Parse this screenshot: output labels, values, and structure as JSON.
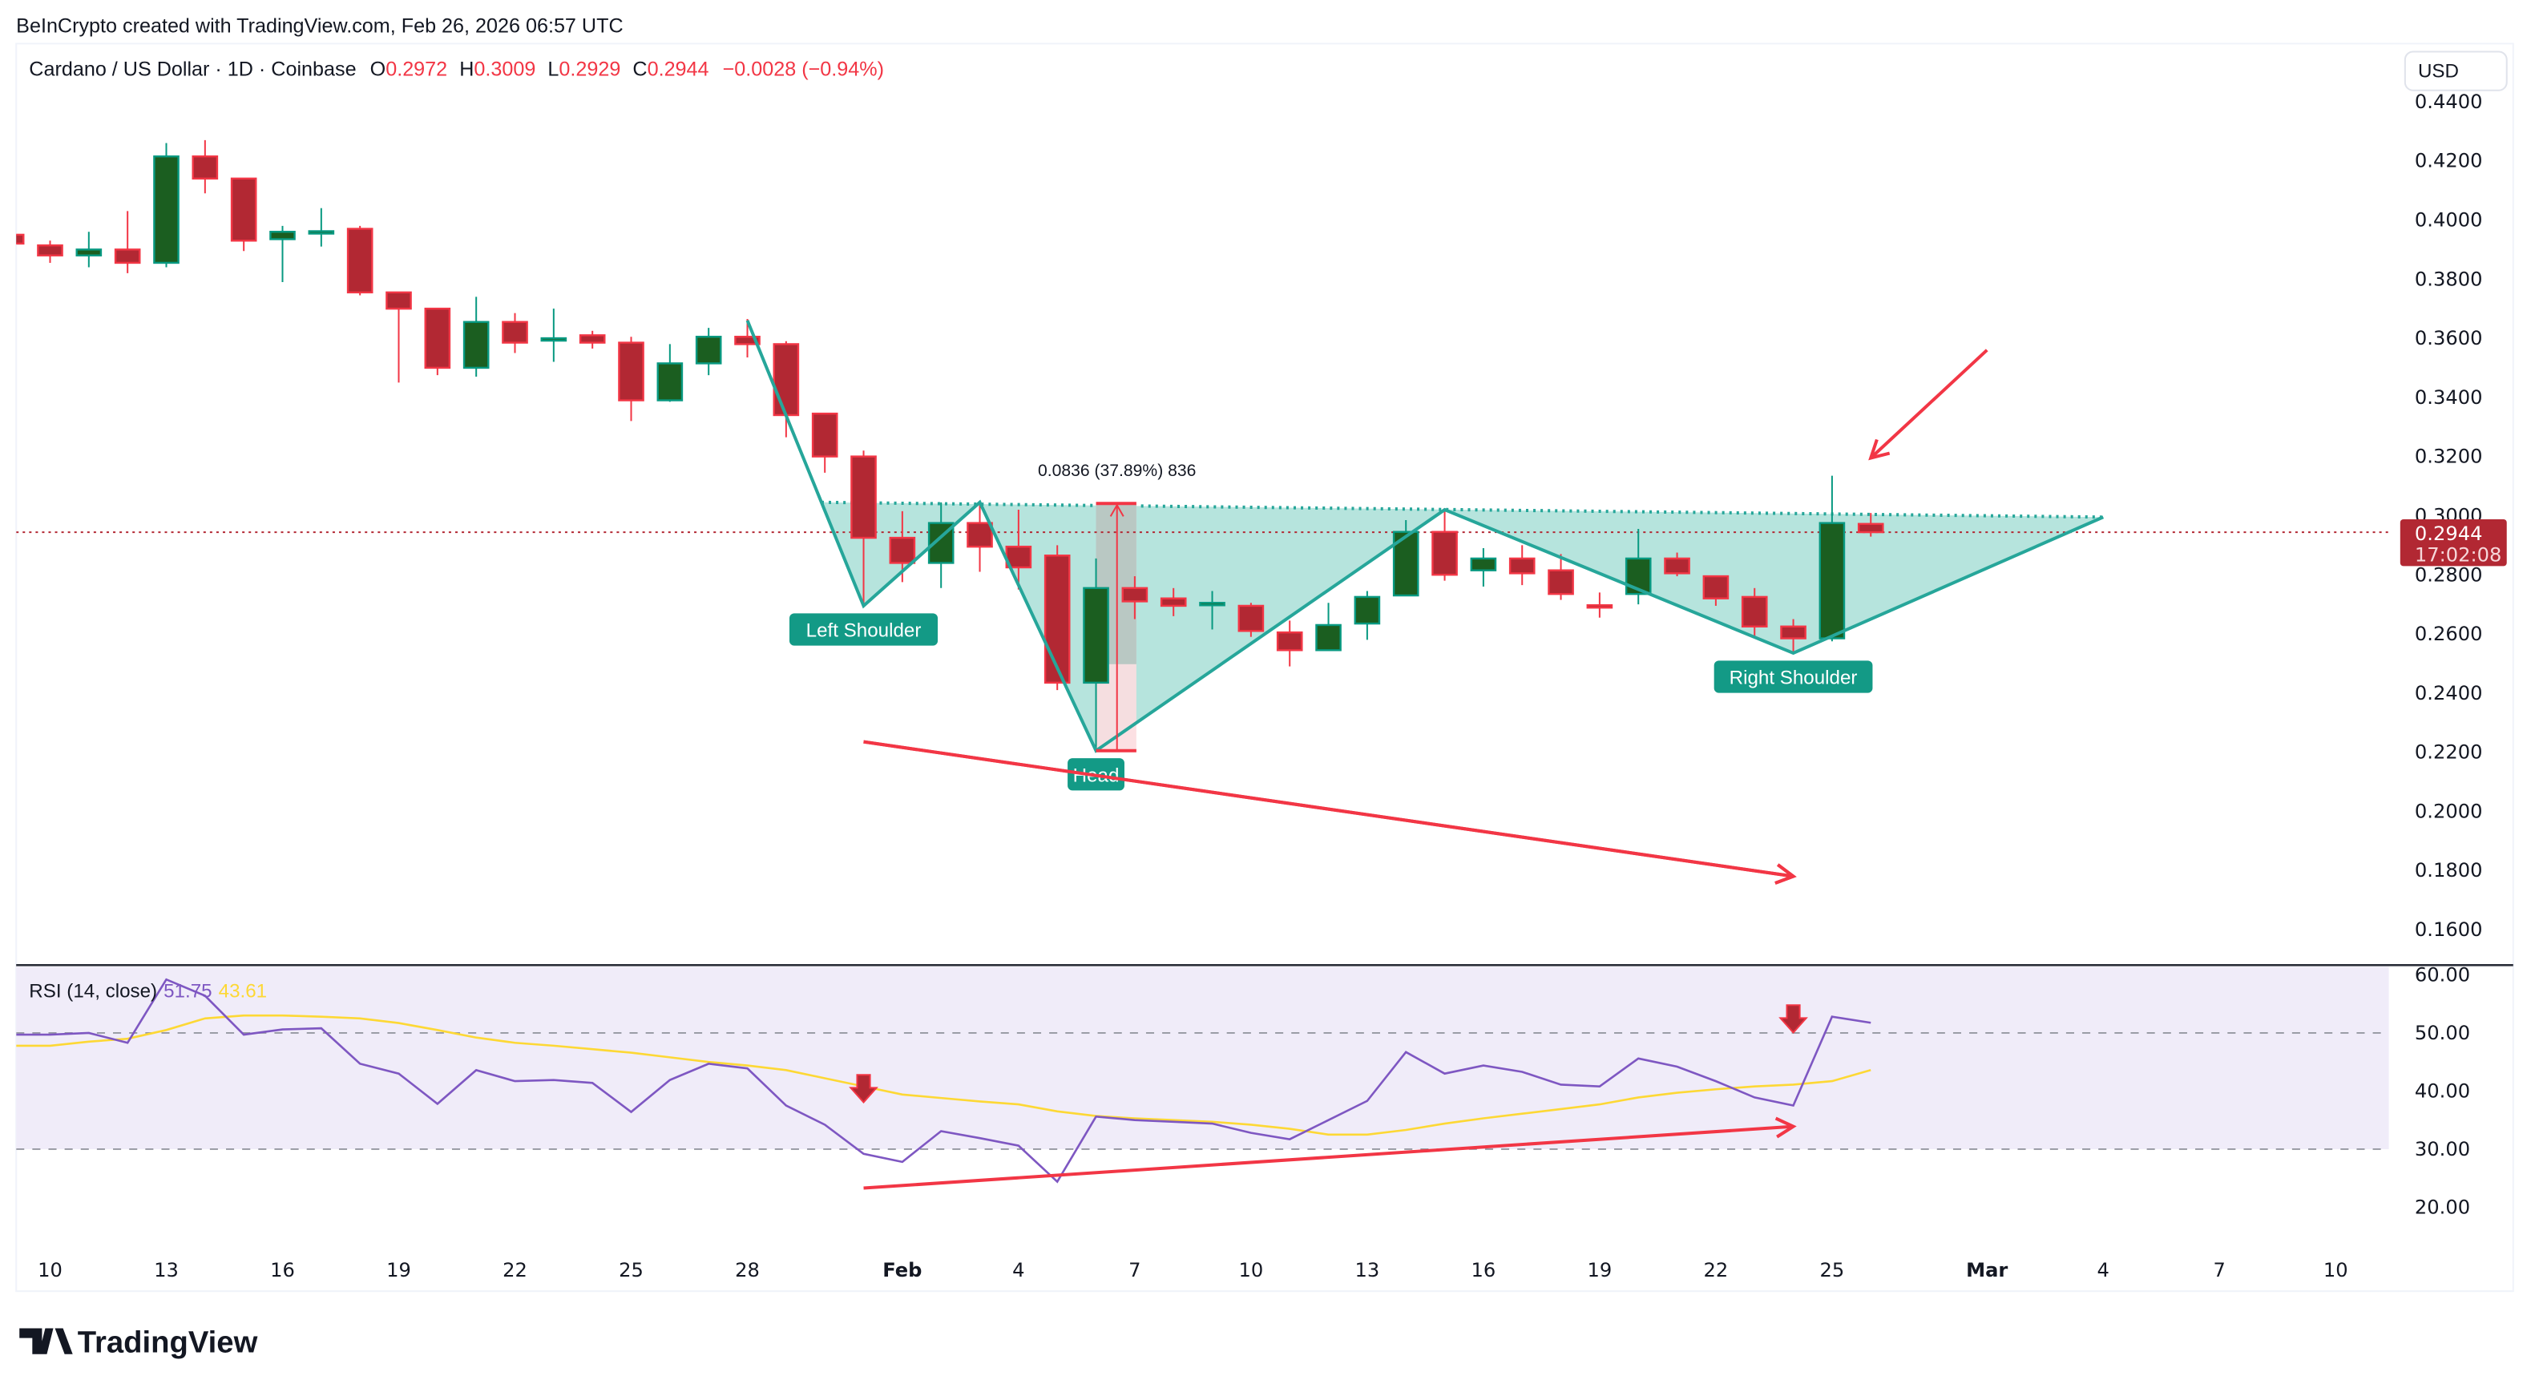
{
  "header": {
    "credit": "BeInCrypto created with TradingView.com, Feb 26, 2026 06:57 UTC",
    "symbol": "Cardano / US Dollar · 1D · Coinbase",
    "o_label": "O",
    "o_value": "0.2972",
    "h_label": "H",
    "h_value": "0.3009",
    "l_label": "L",
    "l_value": "0.2929",
    "c_label": "C",
    "c_value": "0.2944",
    "change": "−0.0028 (−0.94%)"
  },
  "currency_button": "USD",
  "last_price": {
    "value": "0.2944",
    "countdown": "17:02:08"
  },
  "logo_text": "TradingView",
  "colors": {
    "bull_body": "#1b5e20",
    "bull_border": "#089981",
    "bear_body": "#b22833",
    "bear_border": "#f23645",
    "pattern": "#26a69a",
    "pattern_fill": "#b2e3db",
    "annotation_red": "#f23645",
    "rsi": "#7e57c2",
    "rsi_ma": "#fdd835",
    "rsi_band": "#f0ecf9"
  },
  "chart_data": [
    {
      "type": "candlestick",
      "title": "Cardano / US Dollar · 1D · Coinbase",
      "ylim": [
        0.15,
        0.445
      ],
      "y_ticks": [
        "0.4400",
        "0.4200",
        "0.4000",
        "0.3800",
        "0.3600",
        "0.3400",
        "0.3200",
        "0.3000",
        "0.2800",
        "0.2600",
        "0.2400",
        "0.2200",
        "0.2000",
        "0.1800",
        "0.1600"
      ],
      "x_ticks": [
        "10",
        "13",
        "16",
        "19",
        "22",
        "25",
        "28",
        "Feb",
        "4",
        "7",
        "10",
        "13",
        "16",
        "19",
        "22",
        "25",
        "Mar",
        "4",
        "7",
        "10"
      ],
      "x_tick_dates": [
        "Jan 10",
        "Jan 13",
        "Jan 16",
        "Jan 19",
        "Jan 22",
        "Jan 25",
        "Jan 28",
        "Feb 1",
        "Feb 4",
        "Feb 7",
        "Feb 10",
        "Feb 13",
        "Feb 16",
        "Feb 19",
        "Feb 22",
        "Feb 25",
        "Mar 1",
        "Mar 4",
        "Mar 7",
        "Mar 10"
      ],
      "candles": [
        {
          "date": "Jan 9",
          "o": 0.395,
          "h": 0.396,
          "l": 0.391,
          "c": 0.392
        },
        {
          "date": "Jan 10",
          "o": 0.3914,
          "h": 0.393,
          "l": 0.3855,
          "c": 0.388
        },
        {
          "date": "Jan 11",
          "o": 0.388,
          "h": 0.396,
          "l": 0.384,
          "c": 0.39
        },
        {
          "date": "Jan 12",
          "o": 0.39,
          "h": 0.403,
          "l": 0.382,
          "c": 0.3855
        },
        {
          "date": "Jan 13",
          "o": 0.3855,
          "h": 0.426,
          "l": 0.384,
          "c": 0.4215
        },
        {
          "date": "Jan 14",
          "o": 0.4215,
          "h": 0.427,
          "l": 0.409,
          "c": 0.414
        },
        {
          "date": "Jan 15",
          "o": 0.414,
          "h": 0.414,
          "l": 0.3895,
          "c": 0.393
        },
        {
          "date": "Jan 16",
          "o": 0.3935,
          "h": 0.398,
          "l": 0.379,
          "c": 0.396
        },
        {
          "date": "Jan 17",
          "o": 0.3955,
          "h": 0.404,
          "l": 0.391,
          "c": 0.3962
        },
        {
          "date": "Jan 18",
          "o": 0.397,
          "h": 0.398,
          "l": 0.3745,
          "c": 0.3755
        },
        {
          "date": "Jan 19",
          "o": 0.3755,
          "h": 0.3755,
          "l": 0.345,
          "c": 0.37
        },
        {
          "date": "Jan 20",
          "o": 0.37,
          "h": 0.37,
          "l": 0.3475,
          "c": 0.35
        },
        {
          "date": "Jan 21",
          "o": 0.35,
          "h": 0.374,
          "l": 0.347,
          "c": 0.3655
        },
        {
          "date": "Jan 22",
          "o": 0.3655,
          "h": 0.3685,
          "l": 0.355,
          "c": 0.3585
        },
        {
          "date": "Jan 23",
          "o": 0.3595,
          "h": 0.37,
          "l": 0.352,
          "c": 0.36
        },
        {
          "date": "Jan 24",
          "o": 0.361,
          "h": 0.3625,
          "l": 0.3565,
          "c": 0.3585
        },
        {
          "date": "Jan 25",
          "o": 0.3585,
          "h": 0.3605,
          "l": 0.332,
          "c": 0.339
        },
        {
          "date": "Jan 26",
          "o": 0.339,
          "h": 0.358,
          "l": 0.3385,
          "c": 0.3515
        },
        {
          "date": "Jan 27",
          "o": 0.3515,
          "h": 0.3635,
          "l": 0.3475,
          "c": 0.3605
        },
        {
          "date": "Jan 28",
          "o": 0.3605,
          "h": 0.3665,
          "l": 0.3535,
          "c": 0.358
        },
        {
          "date": "Jan 29",
          "o": 0.358,
          "h": 0.359,
          "l": 0.3265,
          "c": 0.334
        },
        {
          "date": "Jan 30",
          "o": 0.3345,
          "h": 0.3345,
          "l": 0.3145,
          "c": 0.32
        },
        {
          "date": "Jan 31",
          "o": 0.32,
          "h": 0.322,
          "l": 0.2695,
          "c": 0.2925
        },
        {
          "date": "Feb 1",
          "o": 0.2925,
          "h": 0.3015,
          "l": 0.2775,
          "c": 0.284
        },
        {
          "date": "Feb 2",
          "o": 0.284,
          "h": 0.3045,
          "l": 0.2755,
          "c": 0.2975
        },
        {
          "date": "Feb 3",
          "o": 0.2975,
          "h": 0.3035,
          "l": 0.281,
          "c": 0.2895
        },
        {
          "date": "Feb 4",
          "o": 0.2895,
          "h": 0.302,
          "l": 0.275,
          "c": 0.2825
        },
        {
          "date": "Feb 5",
          "o": 0.2865,
          "h": 0.29,
          "l": 0.241,
          "c": 0.2435
        },
        {
          "date": "Feb 6",
          "o": 0.2435,
          "h": 0.2855,
          "l": 0.2205,
          "c": 0.2755
        },
        {
          "date": "Feb 7",
          "o": 0.2755,
          "h": 0.2795,
          "l": 0.265,
          "c": 0.271
        },
        {
          "date": "Feb 8",
          "o": 0.272,
          "h": 0.2755,
          "l": 0.266,
          "c": 0.2695
        },
        {
          "date": "Feb 9",
          "o": 0.2702,
          "h": 0.2745,
          "l": 0.2615,
          "c": 0.2705
        },
        {
          "date": "Feb 10",
          "o": 0.2695,
          "h": 0.2705,
          "l": 0.259,
          "c": 0.261
        },
        {
          "date": "Feb 11",
          "o": 0.2605,
          "h": 0.2645,
          "l": 0.249,
          "c": 0.2545
        },
        {
          "date": "Feb 12",
          "o": 0.2545,
          "h": 0.2705,
          "l": 0.2545,
          "c": 0.263
        },
        {
          "date": "Feb 13",
          "o": 0.2635,
          "h": 0.2745,
          "l": 0.258,
          "c": 0.2725
        },
        {
          "date": "Feb 14",
          "o": 0.273,
          "h": 0.2985,
          "l": 0.273,
          "c": 0.2945
        },
        {
          "date": "Feb 15",
          "o": 0.2945,
          "h": 0.3025,
          "l": 0.278,
          "c": 0.28
        },
        {
          "date": "Feb 16",
          "o": 0.2815,
          "h": 0.289,
          "l": 0.276,
          "c": 0.2855
        },
        {
          "date": "Feb 17",
          "o": 0.2855,
          "h": 0.29,
          "l": 0.2765,
          "c": 0.2805
        },
        {
          "date": "Feb 18",
          "o": 0.2815,
          "h": 0.287,
          "l": 0.2715,
          "c": 0.2735
        },
        {
          "date": "Feb 19",
          "o": 0.2697,
          "h": 0.274,
          "l": 0.2655,
          "c": 0.2695
        },
        {
          "date": "Feb 20",
          "o": 0.2735,
          "h": 0.2955,
          "l": 0.27,
          "c": 0.2855
        },
        {
          "date": "Feb 21",
          "o": 0.2855,
          "h": 0.2875,
          "l": 0.2795,
          "c": 0.2805
        },
        {
          "date": "Feb 22",
          "o": 0.2795,
          "h": 0.2795,
          "l": 0.2695,
          "c": 0.272
        },
        {
          "date": "Feb 23",
          "o": 0.2725,
          "h": 0.2755,
          "l": 0.2585,
          "c": 0.2625
        },
        {
          "date": "Feb 24",
          "o": 0.2625,
          "h": 0.265,
          "l": 0.2535,
          "c": 0.2585
        },
        {
          "date": "Feb 25",
          "o": 0.2585,
          "h": 0.3135,
          "l": 0.2575,
          "c": 0.2975
        },
        {
          "date": "Feb 26",
          "o": 0.2972,
          "h": 0.3009,
          "l": 0.2929,
          "c": 0.2944
        }
      ],
      "last_price_line": 0.2944,
      "pattern": {
        "name": "inverse head and shoulders",
        "points": [
          {
            "date": "Jan 28",
            "price": 0.366
          },
          {
            "date": "Jan 31",
            "price": 0.2695
          },
          {
            "date": "Feb 3",
            "price": 0.3045
          },
          {
            "date": "Feb 6",
            "price": 0.2205
          },
          {
            "date": "Feb 15",
            "price": 0.302
          },
          {
            "date": "Feb 24",
            "price": 0.2535
          },
          {
            "date": "Mar 4",
            "price": 0.2995
          }
        ],
        "neckline": [
          {
            "date": "Jan 30",
            "price": 0.3045
          },
          {
            "date": "Mar 4",
            "price": 0.2995
          }
        ],
        "labels": [
          {
            "text": "Left Shoulder",
            "date": "Jan 31",
            "price": 0.2615
          },
          {
            "text": "Head",
            "date": "Feb 6",
            "price": 0.2125
          },
          {
            "text": "Right Shoulder",
            "date": "Feb 24",
            "price": 0.2455
          }
        ]
      },
      "measure": {
        "from_date": "Feb 6",
        "to_date": "Feb 7",
        "low": 0.2205,
        "high": 0.3041,
        "label": "0.0836 (37.89%) 836"
      },
      "annotations": [
        {
          "type": "arrow",
          "from": {
            "date": "Jan 31",
            "price": 0.2235
          },
          "to": {
            "date": "Feb 24",
            "price": 0.178
          }
        },
        {
          "type": "arrow",
          "from": {
            "date": "Mar 1",
            "price": 0.356
          },
          "to": {
            "date": "Feb 26",
            "price": 0.3195
          }
        }
      ]
    },
    {
      "type": "line",
      "title": "RSI (14, close)",
      "ylim": [
        15,
        60
      ],
      "y_ticks": [
        "60.00",
        "50.00",
        "40.00",
        "30.00",
        "20.00"
      ],
      "bands": [
        30,
        50
      ],
      "series": [
        {
          "name": "51.75",
          "values": [
            49.7,
            50,
            48.3,
            59.2,
            56.4,
            49.7,
            50.6,
            50.8,
            44.7,
            43,
            37.8,
            43.6,
            41.7,
            41.9,
            41.4,
            36.4,
            41.9,
            44.7,
            43.9,
            37.5,
            34.2,
            29.2,
            27.8,
            33.1,
            31.9,
            30.6,
            24.4,
            35.6,
            35,
            34.7,
            34.4,
            32.8,
            31.7,
            35,
            38.3,
            46.7,
            43,
            44.4,
            43.3,
            41.1,
            40.8,
            45.6,
            44.2,
            41.7,
            38.9,
            37.5,
            52.8,
            51.75
          ]
        },
        {
          "name": "43.61",
          "values": [
            47.8,
            48.5,
            49,
            50.5,
            52.5,
            53,
            53,
            52.8,
            52.5,
            51.7,
            50.5,
            49.2,
            48.3,
            47.8,
            47.2,
            46.6,
            45.8,
            45,
            44.4,
            43.6,
            42.2,
            40.8,
            39.4,
            38.8,
            38.2,
            37.7,
            36.5,
            35.7,
            35.3,
            35,
            34.7,
            34.2,
            33.5,
            32.5,
            32.5,
            33.3,
            34.4,
            35.3,
            36.1,
            36.9,
            37.7,
            38.9,
            39.7,
            40.3,
            40.8,
            41.1,
            41.7,
            43.61
          ]
        }
      ],
      "series_start_date": "Jan 10",
      "annotations": [
        {
          "type": "arrow",
          "from": {
            "date": "Jan 31",
            "value": 23.3
          },
          "to": {
            "date": "Feb 24",
            "value": 33.9
          }
        },
        {
          "type": "down-marker",
          "date": "Jan 31",
          "value": 40
        },
        {
          "type": "down-marker",
          "date": "Feb 24",
          "value": 52
        }
      ]
    }
  ]
}
